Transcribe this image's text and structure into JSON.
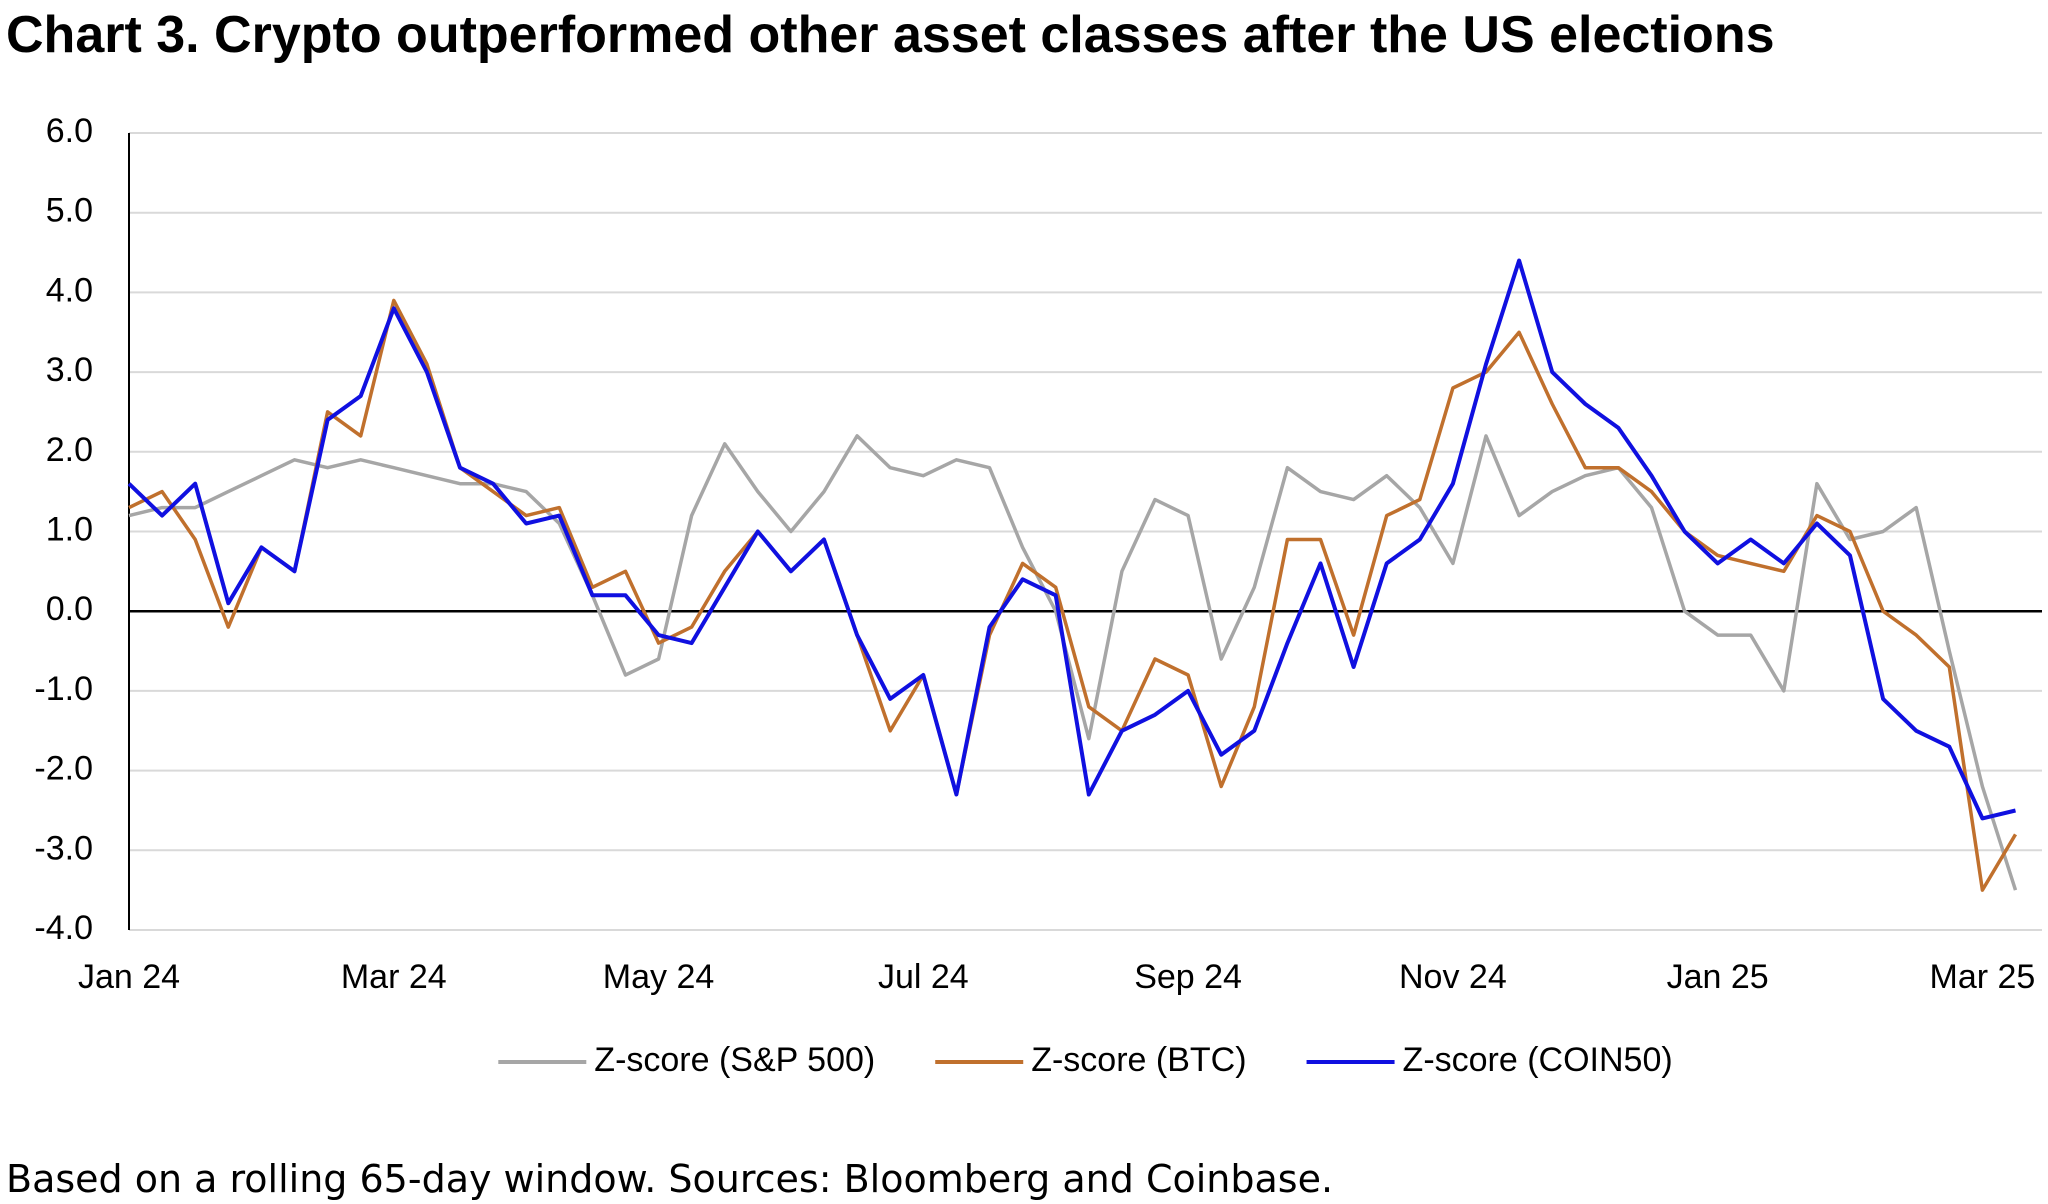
{
  "chart_data": {
    "type": "line",
    "title": "Chart 3. Crypto outperformed other asset classes after the US elections",
    "note": "Based on a rolling 65-day window. Sources: Bloomberg and Coinbase.",
    "categories": [
      "Jan 24",
      null,
      null,
      null,
      null,
      null,
      null,
      null,
      "Mar 24",
      null,
      null,
      null,
      null,
      null,
      null,
      null,
      "May 24",
      null,
      null,
      null,
      null,
      null,
      null,
      null,
      "Jul 24",
      null,
      null,
      null,
      null,
      null,
      null,
      null,
      "Sep 24",
      null,
      null,
      null,
      null,
      null,
      null,
      null,
      "Nov 24",
      null,
      null,
      null,
      null,
      null,
      null,
      null,
      "Jan 25",
      null,
      null,
      null,
      null,
      null,
      null,
      null,
      "Mar 25",
      null
    ],
    "series": [
      {
        "name": "Z-score (S&P 500)",
        "color": "#a6a6a6",
        "values": [
          1.2,
          1.3,
          1.3,
          1.5,
          1.7,
          1.9,
          1.8,
          1.9,
          1.8,
          1.7,
          1.6,
          1.6,
          1.5,
          1.1,
          0.2,
          -0.8,
          -0.6,
          1.2,
          2.1,
          1.5,
          1.0,
          1.5,
          2.2,
          1.8,
          1.7,
          1.9,
          1.8,
          0.8,
          0.0,
          -1.6,
          0.5,
          1.4,
          1.2,
          -0.6,
          0.3,
          1.8,
          1.5,
          1.4,
          1.7,
          1.3,
          0.6,
          2.2,
          1.2,
          1.5,
          1.7,
          1.8,
          1.3,
          0.0,
          -0.3,
          -0.3,
          -1.0,
          1.6,
          0.9,
          1.0,
          1.3,
          -0.5,
          -2.2,
          -3.5
        ]
      },
      {
        "name": "Z-score (BTC)",
        "color": "#c0702d",
        "values": [
          1.3,
          1.5,
          0.9,
          -0.2,
          0.8,
          0.5,
          2.5,
          2.2,
          3.9,
          3.1,
          1.8,
          1.5,
          1.2,
          1.3,
          0.3,
          0.5,
          -0.4,
          -0.2,
          0.5,
          1.0,
          0.5,
          0.9,
          -0.3,
          -1.5,
          -0.8,
          -2.3,
          -0.3,
          0.6,
          0.3,
          -1.2,
          -1.5,
          -0.6,
          -0.8,
          -2.2,
          -1.2,
          0.9,
          0.9,
          -0.3,
          1.2,
          1.4,
          2.8,
          3.0,
          3.5,
          2.6,
          1.8,
          1.8,
          1.5,
          1.0,
          0.7,
          0.6,
          0.5,
          1.2,
          1.0,
          0.0,
          -0.3,
          -0.7,
          -3.5,
          -2.8
        ]
      },
      {
        "name": "Z-score (COIN50)",
        "color": "#1010e0",
        "values": [
          1.6,
          1.2,
          1.6,
          0.1,
          0.8,
          0.5,
          2.4,
          2.7,
          3.8,
          3.0,
          1.8,
          1.6,
          1.1,
          1.2,
          0.2,
          0.2,
          -0.3,
          -0.4,
          0.3,
          1.0,
          0.5,
          0.9,
          -0.3,
          -1.1,
          -0.8,
          -2.3,
          -0.2,
          0.4,
          0.2,
          -2.3,
          -1.5,
          -1.3,
          -1.0,
          -1.8,
          -1.5,
          -0.4,
          0.6,
          -0.7,
          0.6,
          0.9,
          1.6,
          3.1,
          4.4,
          3.0,
          2.6,
          2.3,
          1.7,
          1.0,
          0.6,
          0.9,
          0.6,
          1.1,
          0.7,
          -1.1,
          -1.5,
          -1.7,
          -2.6,
          -2.5
        ]
      }
    ],
    "ylim": [
      -4,
      6
    ],
    "yticks": [
      {
        "value": -4,
        "label": "-4.0"
      },
      {
        "value": -3,
        "label": "-3.0"
      },
      {
        "value": -2,
        "label": "-2.0"
      },
      {
        "value": -1,
        "label": "-1.0"
      },
      {
        "value": 0,
        "label": "0.0"
      },
      {
        "value": 1,
        "label": "1.0"
      },
      {
        "value": 2,
        "label": "2.0"
      },
      {
        "value": 3,
        "label": "3.0"
      },
      {
        "value": 4,
        "label": "4.0"
      },
      {
        "value": 5,
        "label": "5.0"
      },
      {
        "value": 6,
        "label": "6.0"
      }
    ],
    "grid": true,
    "legend": "bottom"
  }
}
